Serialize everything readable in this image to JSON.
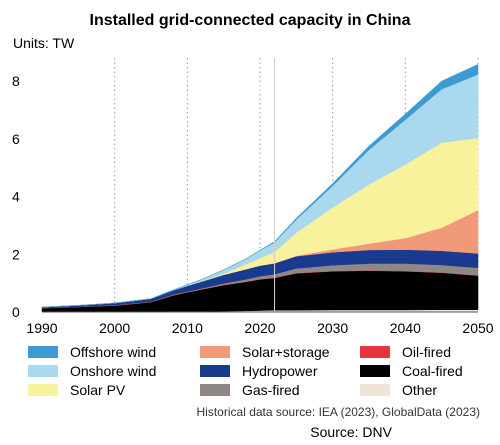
{
  "title": "Installed grid-connected capacity in China",
  "units_label": "Units: TW",
  "historical_note": "Historical data source: IEA (2023), GlobalData (2023)",
  "source": "Source: DNV",
  "chart_data": {
    "type": "area",
    "stacked": true,
    "history_until": 2022,
    "xlim": [
      1990,
      2050
    ],
    "ylim": [
      0,
      8.8
    ],
    "xticks": [
      1990,
      2000,
      2010,
      2020,
      2030,
      2040,
      2050
    ],
    "yticks": [
      0,
      2,
      4,
      6,
      8
    ],
    "grid": "vertical dotted",
    "legend_position": "bottom",
    "x": [
      1990,
      1995,
      2000,
      2005,
      2008,
      2010,
      2012,
      2015,
      2018,
      2020,
      2022,
      2025,
      2030,
      2035,
      2040,
      2045,
      2050
    ],
    "series": [
      {
        "name": "Other",
        "color": "#efe4d6",
        "values": [
          0.01,
          0.01,
          0.01,
          0.01,
          0.02,
          0.02,
          0.02,
          0.03,
          0.04,
          0.05,
          0.06,
          0.06,
          0.07,
          0.07,
          0.07,
          0.08,
          0.08
        ]
      },
      {
        "name": "Coal-fired",
        "color": "#000000",
        "values": [
          0.12,
          0.16,
          0.21,
          0.33,
          0.55,
          0.66,
          0.76,
          0.9,
          1.0,
          1.08,
          1.12,
          1.28,
          1.34,
          1.36,
          1.34,
          1.28,
          1.18
        ]
      },
      {
        "name": "Oil-fired",
        "color": "#e5343d",
        "values": [
          0.01,
          0.01,
          0.01,
          0.01,
          0.01,
          0.01,
          0.01,
          0.01,
          0.01,
          0.01,
          0.01,
          0.01,
          0.01,
          0.01,
          0.01,
          0.01,
          0.01
        ]
      },
      {
        "name": "Gas-fired",
        "color": "#8f8884",
        "values": [
          0.0,
          0.0,
          0.01,
          0.01,
          0.02,
          0.02,
          0.03,
          0.05,
          0.08,
          0.1,
          0.12,
          0.16,
          0.2,
          0.24,
          0.26,
          0.26,
          0.26
        ]
      },
      {
        "name": "Hydropower",
        "color": "#1a3a8f",
        "values": [
          0.03,
          0.05,
          0.07,
          0.1,
          0.15,
          0.2,
          0.24,
          0.3,
          0.35,
          0.37,
          0.38,
          0.42,
          0.45,
          0.47,
          0.48,
          0.49,
          0.5
        ]
      },
      {
        "name": "Solar+storage",
        "color": "#f19a79",
        "values": [
          0,
          0,
          0,
          0,
          0,
          0,
          0,
          0,
          0,
          0,
          0,
          0.02,
          0.1,
          0.22,
          0.4,
          0.8,
          1.5
        ]
      },
      {
        "name": "Solar PV",
        "color": "#f8f29c",
        "values": [
          0,
          0,
          0,
          0,
          0,
          0,
          0.01,
          0.04,
          0.17,
          0.25,
          0.39,
          0.8,
          1.45,
          2.05,
          2.55,
          2.95,
          2.5
        ]
      },
      {
        "name": "Onshore wind",
        "color": "#aad8ee",
        "values": [
          0,
          0,
          0,
          0,
          0.01,
          0.03,
          0.06,
          0.13,
          0.18,
          0.27,
          0.33,
          0.45,
          0.75,
          1.2,
          1.55,
          1.85,
          2.2
        ]
      },
      {
        "name": "Offshore wind",
        "color": "#3d9bd4",
        "values": [
          0,
          0,
          0,
          0,
          0,
          0,
          0,
          0,
          0.004,
          0.01,
          0.03,
          0.05,
          0.08,
          0.13,
          0.2,
          0.28,
          0.35
        ]
      }
    ]
  }
}
